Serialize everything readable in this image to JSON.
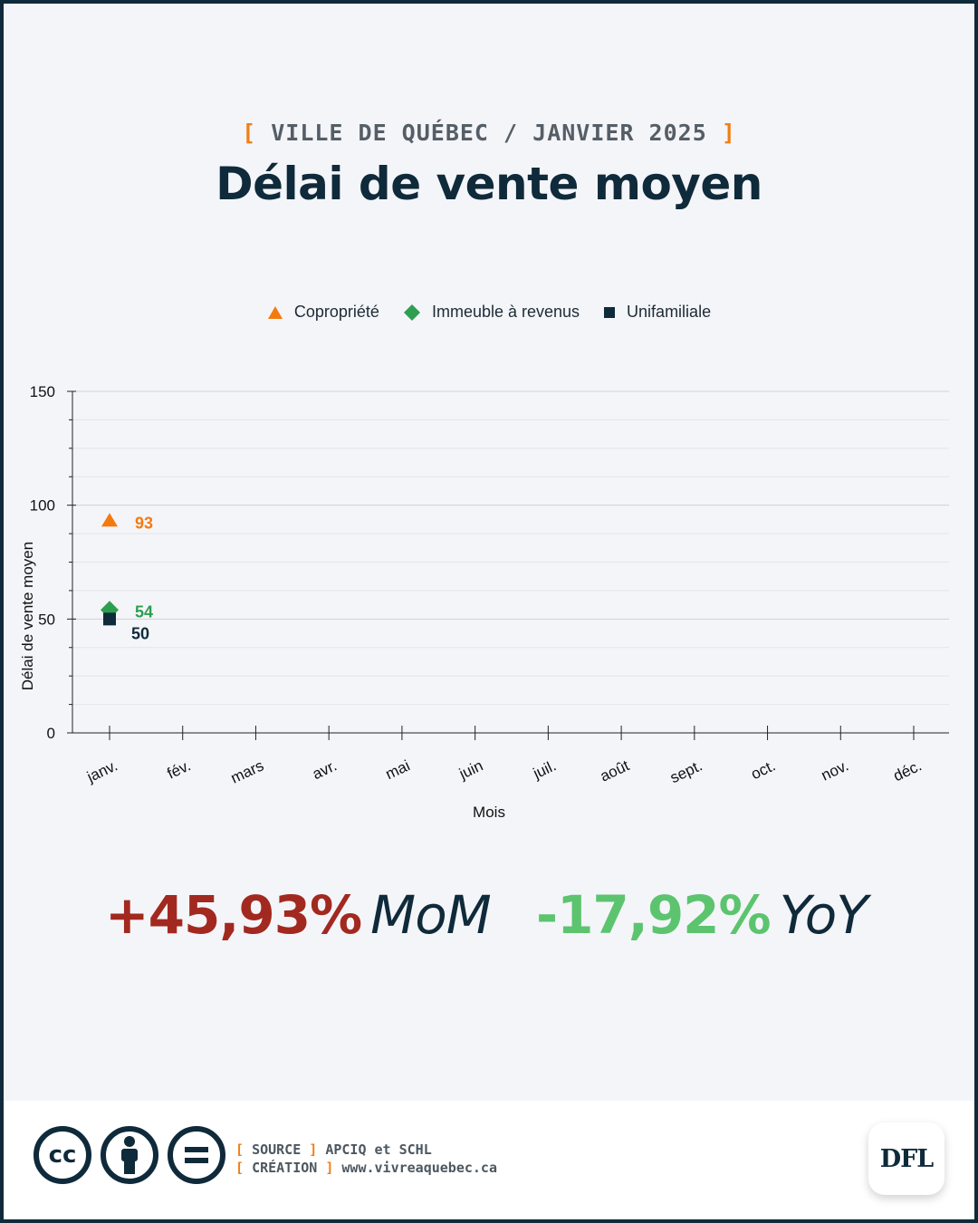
{
  "header": {
    "supertitle_open": "[",
    "supertitle_text": "VILLE DE QUÉBEC / JANVIER 2025",
    "supertitle_close": "]",
    "title": "Délai de vente moyen"
  },
  "chart_data": {
    "type": "scatter",
    "categories": [
      "janv.",
      "fév.",
      "mars",
      "avr.",
      "mai",
      "juin",
      "juil.",
      "août",
      "sept.",
      "oct.",
      "nov.",
      "déc."
    ],
    "series": [
      {
        "name": "Copropriété",
        "marker": "triangle",
        "color": "#f47a0f",
        "values": [
          93
        ]
      },
      {
        "name": "Immeuble à revenus",
        "marker": "diamond",
        "color": "#2e9e4f",
        "values": [
          54
        ]
      },
      {
        "name": "Unifamiliale",
        "marker": "square",
        "color": "#0f2a3a",
        "values": [
          50
        ]
      }
    ],
    "xlabel": "Mois",
    "ylabel": "Délai de vente moyen",
    "ylim": [
      0,
      150
    ],
    "yticks": [
      0,
      50,
      100,
      150
    ],
    "grid": true,
    "legend": "top"
  },
  "stats": {
    "mom_value": "+45,93%",
    "mom_label": "MoM",
    "mom_color": "#a2291f",
    "yoy_value": "-17,92%",
    "yoy_label": "YoY",
    "yoy_color": "#5cc46e"
  },
  "footer": {
    "cc_label": "cc",
    "source_open": "[",
    "source_key": "SOURCE",
    "source_close": "]",
    "source_value": "APCIQ et SCHL",
    "creation_open": "[",
    "creation_key": "CRÉATION",
    "creation_close": "]",
    "creation_value": "www.vivreaquebec.ca",
    "logo_text": "DFL"
  }
}
